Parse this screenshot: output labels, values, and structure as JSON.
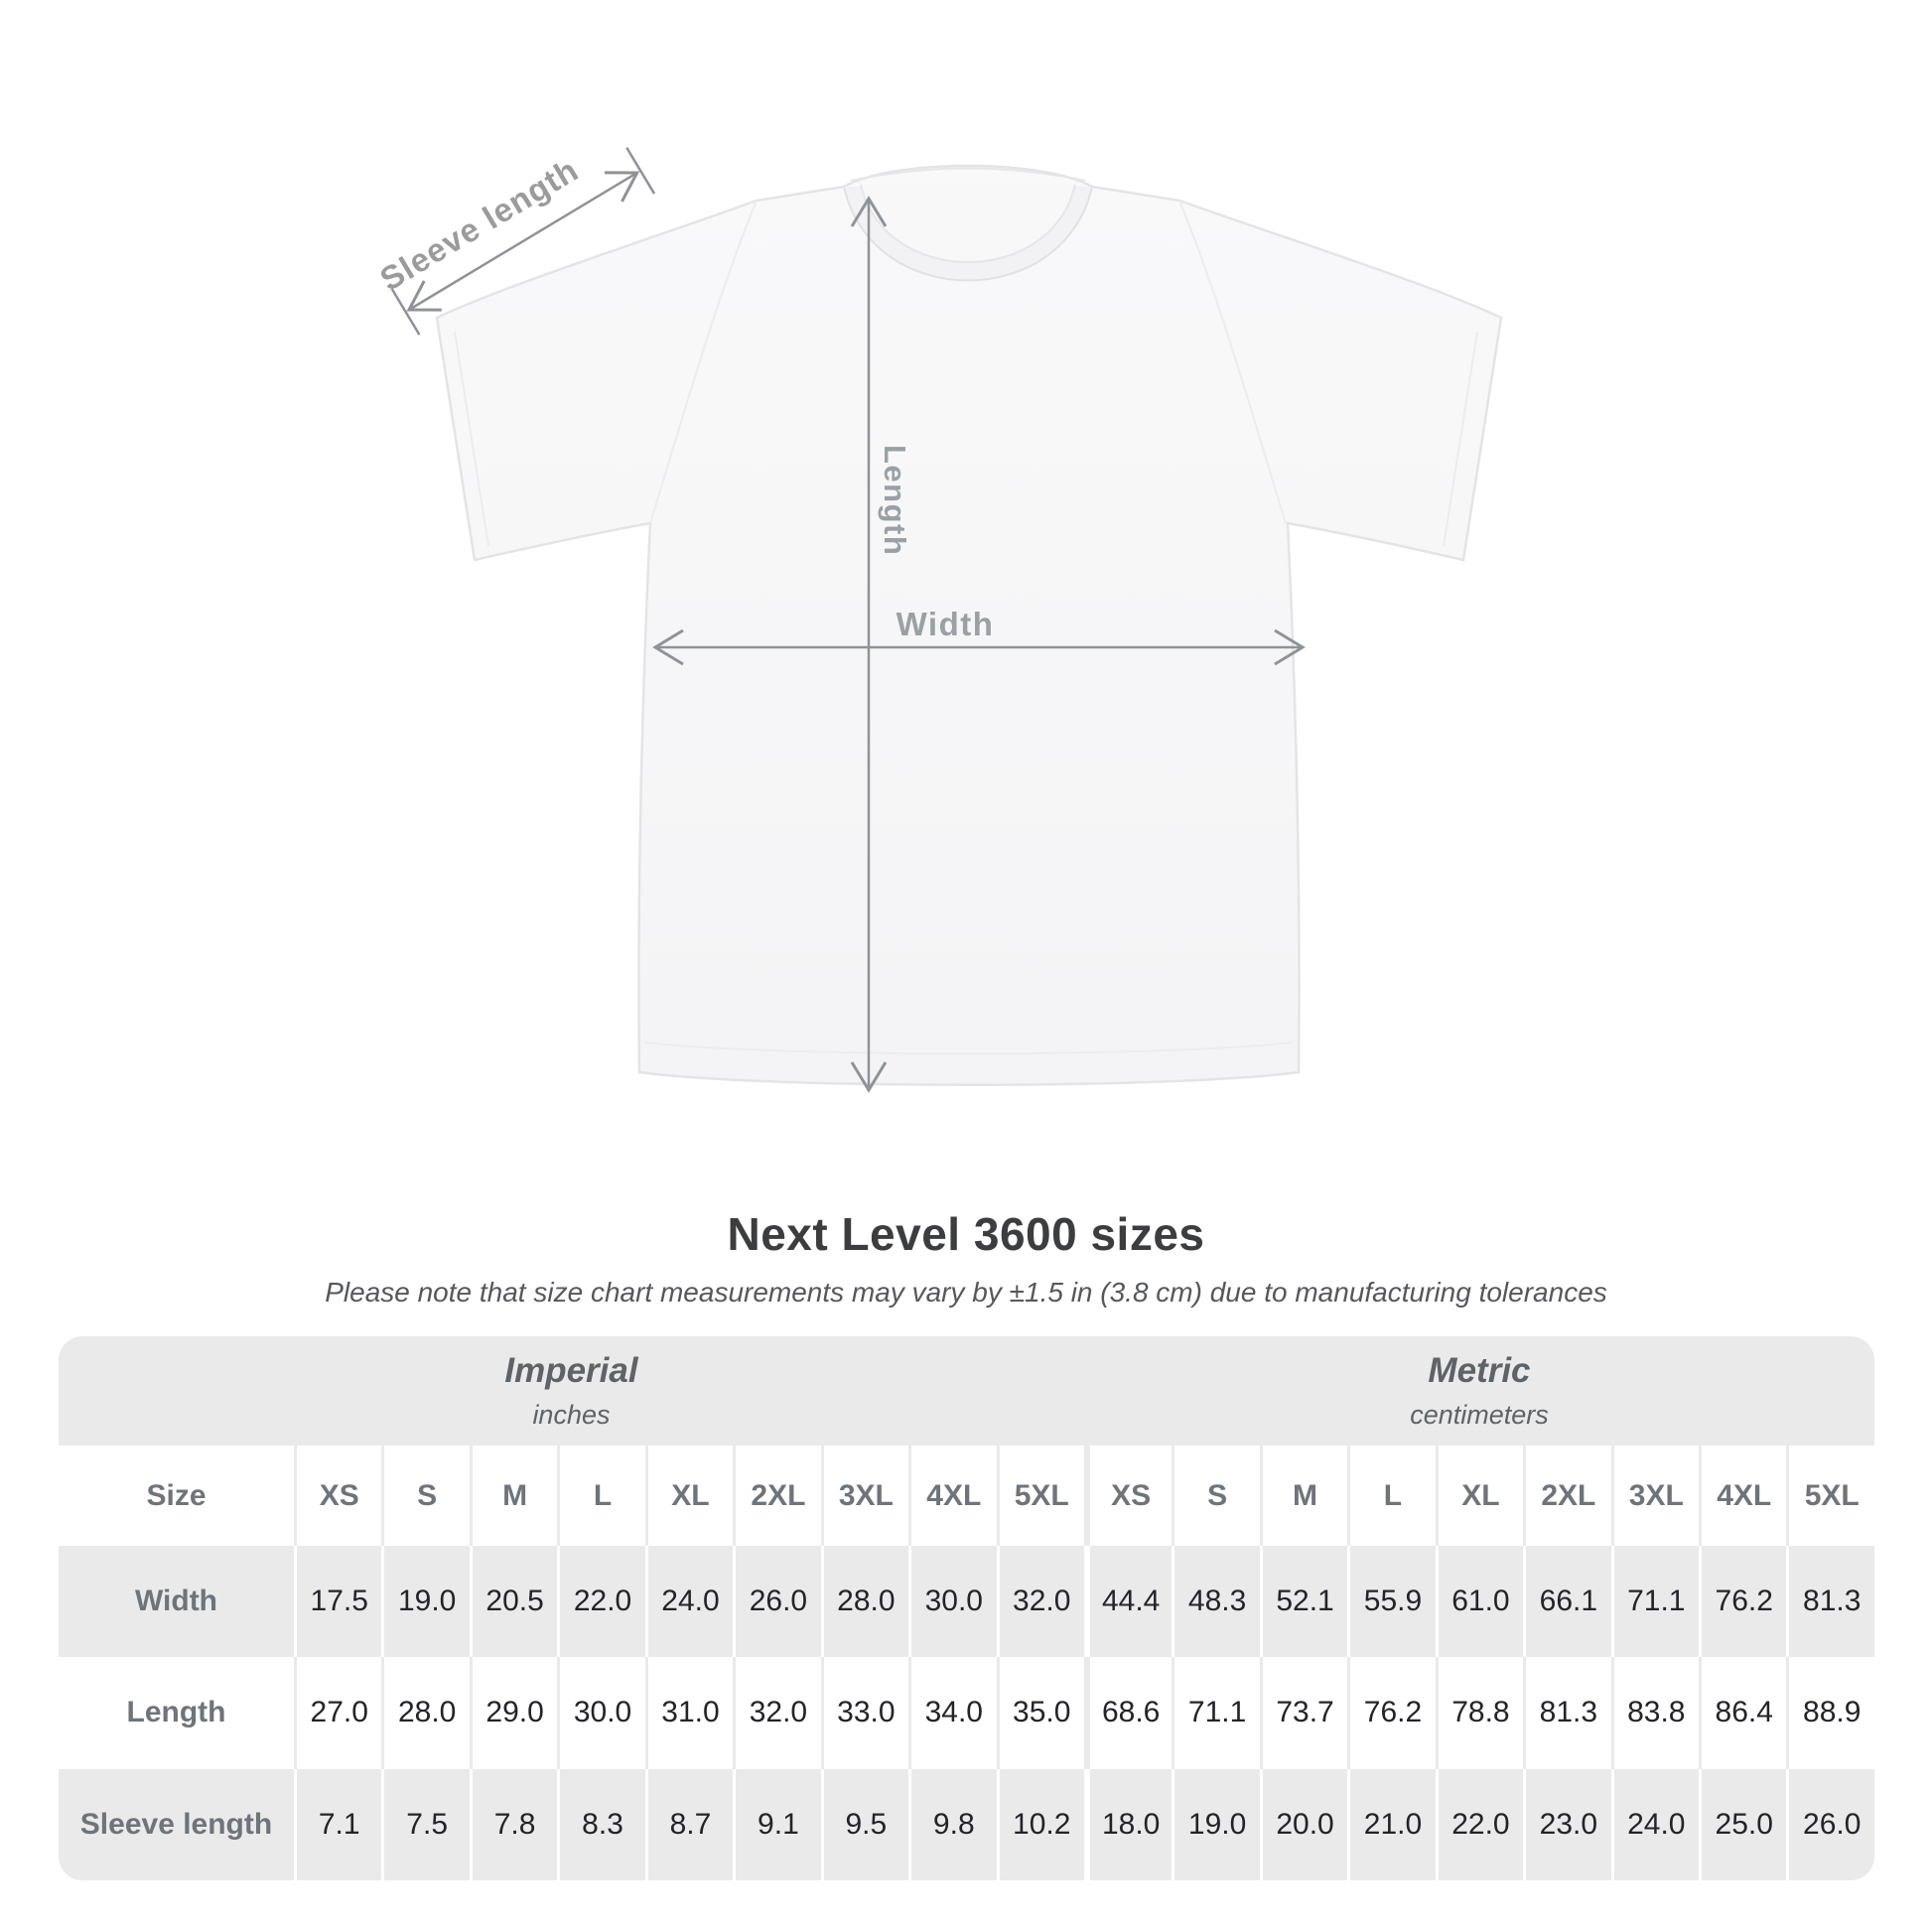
{
  "diagram": {
    "sleeve_label": "Sleeve length",
    "length_label": "Length",
    "width_label": "Width"
  },
  "title": "Next Level 3600 sizes",
  "subtitle": "Please note that size chart measurements may vary by ±1.5 in (3.8 cm) due to manufacturing tolerances",
  "size_chart": {
    "groups": [
      {
        "label": "Imperial",
        "sublabel": "inches"
      },
      {
        "label": "Metric",
        "sublabel": "centimeters"
      }
    ],
    "corner_label": "Size",
    "sizes": [
      "XS",
      "S",
      "M",
      "L",
      "XL",
      "2XL",
      "3XL",
      "4XL",
      "5XL"
    ],
    "rows": [
      {
        "label": "Width",
        "imperial": [
          "17.5",
          "19.0",
          "20.5",
          "22.0",
          "24.0",
          "26.0",
          "28.0",
          "30.0",
          "32.0"
        ],
        "metric": [
          "44.4",
          "48.3",
          "52.1",
          "55.9",
          "61.0",
          "66.1",
          "71.1",
          "76.2",
          "81.3"
        ]
      },
      {
        "label": "Length",
        "imperial": [
          "27.0",
          "28.0",
          "29.0",
          "30.0",
          "31.0",
          "32.0",
          "33.0",
          "34.0",
          "35.0"
        ],
        "metric": [
          "68.6",
          "71.1",
          "73.7",
          "76.2",
          "78.8",
          "81.3",
          "83.8",
          "86.4",
          "88.9"
        ]
      },
      {
        "label": "Sleeve length",
        "imperial": [
          "7.1",
          "7.5",
          "7.8",
          "8.3",
          "8.7",
          "9.1",
          "9.5",
          "9.8",
          "10.2"
        ],
        "metric": [
          "18.0",
          "19.0",
          "20.0",
          "21.0",
          "22.0",
          "23.0",
          "24.0",
          "25.0",
          "26.0"
        ]
      }
    ]
  },
  "colors": {
    "table_bg": "#eaeaea",
    "row_alt": "#ffffff",
    "annotation_text": "#9aa0a4",
    "annotation_line": "#8f9397",
    "title_text": "#3b3d3f",
    "value_text": "#222428",
    "label_text": "#6e7479",
    "shirt_fill": "#f7f7f8"
  }
}
